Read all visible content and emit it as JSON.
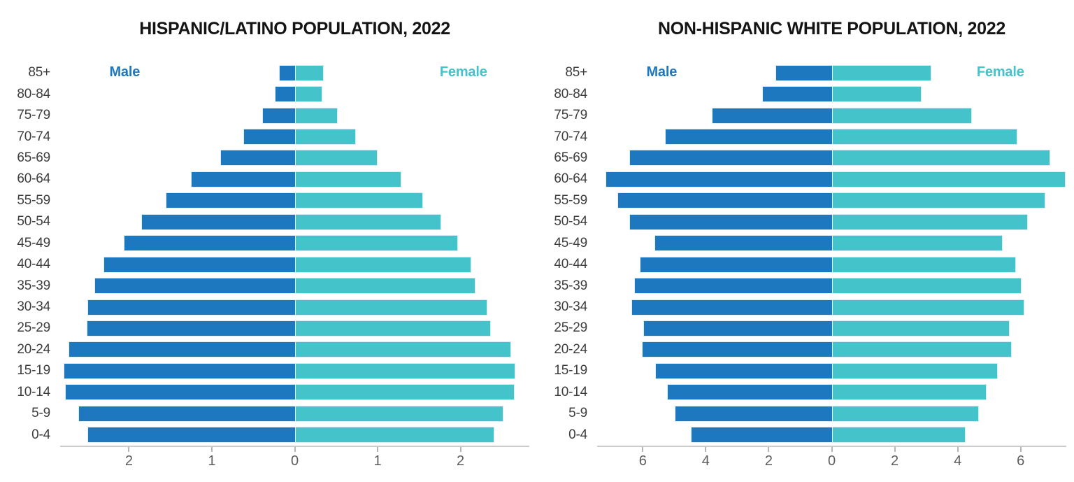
{
  "style": {
    "male_color": "#1e78c0",
    "female_color": "#45c3ca",
    "title_color": "#141414",
    "age_label_color": "#3d3d3d",
    "tick_label_color": "#5c5d5f",
    "axis_line_color": "#cbcbcb",
    "background": "#ffffff"
  },
  "chart_data": [
    {
      "type": "bar",
      "variant": "population_pyramid",
      "title": "HISPANIC/LATINO POPULATION, 2022",
      "legend": {
        "male_label": "Male",
        "female_label": "Female"
      },
      "legend_position": "top corners inside plot",
      "grid": false,
      "categories_top_to_bottom": [
        "85+",
        "80-84",
        "75-79",
        "70-74",
        "65-69",
        "60-64",
        "55-59",
        "50-54",
        "45-49",
        "40-44",
        "35-39",
        "30-34",
        "25-29",
        "20-24",
        "15-19",
        "10-14",
        "5-9",
        "0-4"
      ],
      "series": [
        {
          "name": "Male",
          "side": "left",
          "color": "#1e78c0",
          "values": [
            0.19,
            0.24,
            0.39,
            0.62,
            0.9,
            1.25,
            1.56,
            1.85,
            2.06,
            2.31,
            2.42,
            2.5,
            2.51,
            2.73,
            2.79,
            2.77,
            2.61,
            2.5
          ]
        },
        {
          "name": "Female",
          "side": "right",
          "color": "#45c3ca",
          "values": [
            0.35,
            0.33,
            0.52,
            0.74,
            1.0,
            1.29,
            1.55,
            1.77,
            1.97,
            2.13,
            2.18,
            2.32,
            2.37,
            2.61,
            2.66,
            2.65,
            2.52,
            2.41
          ]
        }
      ],
      "x_tick_values": [
        -2,
        -1,
        0,
        1,
        2
      ],
      "x_tick_labels": [
        "2",
        "1",
        "0",
        "1",
        "2"
      ],
      "axis_max_abs": 2.83
    },
    {
      "type": "bar",
      "variant": "population_pyramid",
      "title": "NON-HISPANIC WHITE POPULATION, 2022",
      "legend": {
        "male_label": "Male",
        "female_label": "Female"
      },
      "legend_position": "top corners inside plot",
      "grid": false,
      "categories_top_to_bottom": [
        "85+",
        "80-84",
        "75-79",
        "70-74",
        "65-69",
        "60-64",
        "55-59",
        "50-54",
        "45-49",
        "40-44",
        "35-39",
        "30-34",
        "25-29",
        "20-24",
        "15-19",
        "10-14",
        "5-9",
        "0-4"
      ],
      "series": [
        {
          "name": "Male",
          "side": "left",
          "color": "#1e78c0",
          "values": [
            1.79,
            2.2,
            3.81,
            5.29,
            6.42,
            7.18,
            6.8,
            6.42,
            5.62,
            6.1,
            6.27,
            6.36,
            5.98,
            6.04,
            5.61,
            5.24,
            4.98,
            4.47
          ]
        },
        {
          "name": "Female",
          "side": "right",
          "color": "#45c3ca",
          "values": [
            3.17,
            2.85,
            4.46,
            5.89,
            6.95,
            7.42,
            6.79,
            6.22,
            5.43,
            5.86,
            6.02,
            6.12,
            5.65,
            5.71,
            5.27,
            4.92,
            4.68,
            4.25
          ]
        }
      ],
      "x_tick_values": [
        -6,
        -4,
        -2,
        0,
        2,
        4,
        6
      ],
      "x_tick_labels": [
        "6",
        "4",
        "2",
        "0",
        "2",
        "4",
        "6"
      ],
      "axis_max_abs": 7.45
    }
  ]
}
